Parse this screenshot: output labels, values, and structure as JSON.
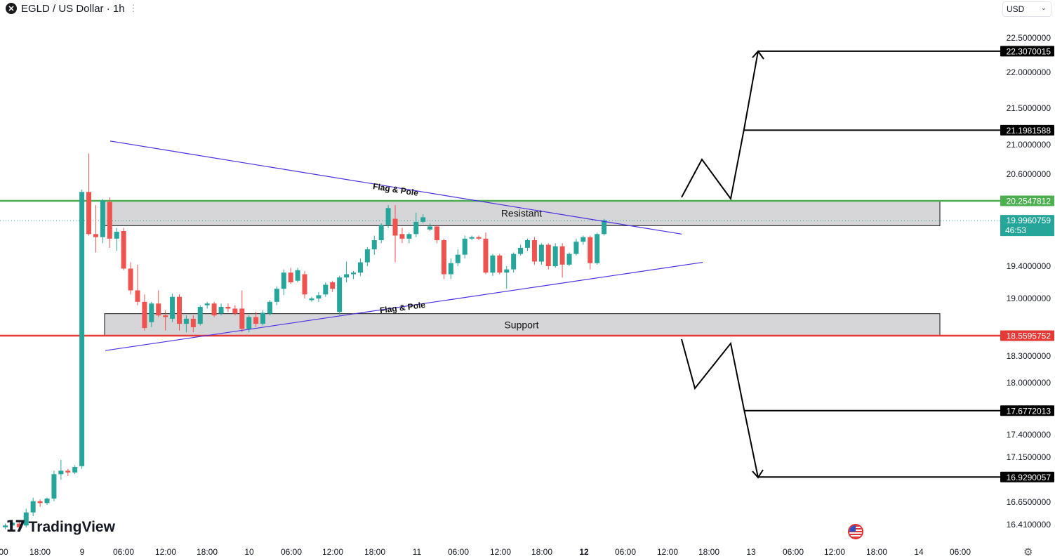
{
  "header": {
    "symbol_icon": "egld-coin-icon",
    "title": "EGLD / US Dollar · 1h"
  },
  "currency_select": {
    "value": "USD"
  },
  "brand": {
    "logo_icon": "tradingview-logo-icon",
    "name": "TradingView"
  },
  "icons": {
    "flag": "us-flag-icon",
    "settings": "gear-icon"
  },
  "colors": {
    "up": "#26a69a",
    "down": "#ef5350",
    "resistance_line": "#4caf50",
    "support_line": "#e53935",
    "flag_lines": "#4a2ee0",
    "zone_fill": "#d6d6d9"
  },
  "chart_data": {
    "type": "candlestick",
    "title": "EGLD / US Dollar · 1h",
    "price_axis_labels": [
      "22.5000000",
      "22.0000000",
      "21.5000000",
      "21.0000000",
      "20.6000000",
      "19.4000000",
      "19.0000000",
      "18.3000000",
      "18.0000000",
      "17.4000000",
      "17.1500000",
      "16.6500000",
      "16.4100000"
    ],
    "time_axis_labels": [
      "00",
      "18:00",
      "9",
      "06:00",
      "12:00",
      "18:00",
      "10",
      "06:00",
      "12:00",
      "18:00",
      "11",
      "06:00",
      "12:00",
      "18:00",
      "12",
      "06:00",
      "12:00",
      "18:00",
      "13",
      "06:00",
      "12:00",
      "18:00",
      "14",
      "06:00"
    ],
    "price_tags": [
      {
        "value": "22.3070015",
        "style": "black"
      },
      {
        "value": "21.1981588",
        "style": "black"
      },
      {
        "value": "20.2547812",
        "style": "green"
      },
      {
        "value": "19.9960759",
        "sub": "46:53",
        "style": "teal"
      },
      {
        "value": "18.5595752",
        "style": "red"
      },
      {
        "value": "17.6772013",
        "style": "black"
      },
      {
        "value": "16.9290057",
        "style": "black"
      }
    ],
    "horizontal_lines": {
      "resistance": 20.2547812,
      "support": 18.5595752,
      "last_price": 19.9960759
    },
    "zones": [
      {
        "label": "Resistant",
        "top": 20.2547812,
        "bottom": 19.93
      },
      {
        "label": "Support",
        "top": 18.82,
        "bottom": 18.56
      }
    ],
    "trendlines": [
      {
        "label": "Flag & Pole",
        "from_price": 21.05,
        "to_price": 19.82
      },
      {
        "label": "Flag & Pole",
        "from_price": 18.37,
        "to_price": 19.45
      }
    ],
    "candles": [
      [
        16.38,
        16.42,
        16.36,
        16.4
      ],
      [
        16.4,
        16.46,
        16.38,
        16.43
      ],
      [
        16.42,
        16.44,
        16.36,
        16.38
      ],
      [
        16.4,
        16.58,
        16.38,
        16.54
      ],
      [
        16.54,
        16.7,
        16.5,
        16.66
      ],
      [
        16.66,
        16.68,
        16.6,
        16.64
      ],
      [
        16.64,
        16.7,
        16.62,
        16.69
      ],
      [
        16.69,
        17.0,
        16.66,
        16.96
      ],
      [
        16.96,
        17.12,
        16.9,
        17.0
      ],
      [
        17.0,
        17.02,
        16.94,
        16.98
      ],
      [
        16.98,
        17.06,
        16.96,
        17.04
      ],
      [
        17.05,
        20.4,
        17.02,
        20.37
      ],
      [
        20.37,
        20.88,
        19.8,
        19.82
      ],
      [
        19.82,
        20.2,
        19.58,
        19.78
      ],
      [
        19.78,
        20.28,
        19.7,
        20.26
      ],
      [
        20.24,
        20.3,
        19.64,
        19.76
      ],
      [
        19.76,
        19.9,
        19.6,
        19.85
      ],
      [
        19.86,
        19.9,
        19.35,
        19.37
      ],
      [
        19.37,
        19.45,
        19.05,
        19.1
      ],
      [
        19.1,
        19.42,
        18.92,
        18.96
      ],
      [
        18.96,
        19.05,
        18.62,
        18.65
      ],
      [
        18.72,
        18.96,
        18.66,
        18.94
      ],
      [
        18.94,
        19.1,
        18.78,
        18.8
      ],
      [
        18.8,
        18.86,
        18.62,
        18.78
      ],
      [
        18.76,
        19.06,
        18.72,
        19.02
      ],
      [
        19.02,
        19.05,
        18.62,
        18.7
      ],
      [
        18.7,
        18.8,
        18.6,
        18.76
      ],
      [
        18.76,
        18.8,
        18.6,
        18.66
      ],
      [
        18.7,
        18.92,
        18.68,
        18.9
      ],
      [
        18.92,
        18.96,
        18.88,
        18.94
      ],
      [
        18.94,
        18.96,
        18.78,
        18.8
      ],
      [
        18.82,
        18.94,
        18.8,
        18.9
      ],
      [
        18.9,
        18.94,
        18.84,
        18.88
      ],
      [
        18.88,
        18.92,
        18.8,
        18.82
      ],
      [
        18.88,
        19.1,
        18.6,
        18.64
      ],
      [
        18.64,
        18.8,
        18.6,
        18.78
      ],
      [
        18.78,
        18.84,
        18.66,
        18.7
      ],
      [
        18.7,
        18.86,
        18.68,
        18.83
      ],
      [
        18.82,
        18.98,
        18.8,
        18.96
      ],
      [
        18.96,
        19.15,
        18.92,
        19.12
      ],
      [
        19.12,
        19.36,
        19.04,
        19.32
      ],
      [
        19.32,
        19.38,
        19.18,
        19.2
      ],
      [
        19.22,
        19.38,
        19.2,
        19.35
      ],
      [
        19.3,
        19.34,
        19.0,
        19.05
      ],
      [
        18.98,
        19.02,
        18.96,
        19.0
      ],
      [
        19.0,
        19.08,
        18.96,
        19.04
      ],
      [
        19.05,
        19.2,
        19.02,
        19.17
      ],
      [
        19.2,
        19.22,
        19.08,
        19.12
      ],
      [
        18.84,
        19.28,
        18.8,
        19.26
      ],
      [
        19.26,
        19.46,
        19.2,
        19.3
      ],
      [
        19.3,
        19.34,
        19.24,
        19.32
      ],
      [
        19.32,
        19.5,
        19.28,
        19.45
      ],
      [
        19.45,
        19.65,
        19.4,
        19.62
      ],
      [
        19.62,
        19.8,
        19.55,
        19.74
      ],
      [
        19.74,
        19.96,
        19.7,
        19.94
      ],
      [
        19.94,
        20.2,
        19.9,
        20.16
      ],
      [
        20.02,
        20.2,
        19.45,
        19.8
      ],
      [
        19.82,
        19.9,
        19.7,
        19.76
      ],
      [
        19.76,
        19.84,
        19.7,
        19.82
      ],
      [
        19.82,
        20.1,
        19.78,
        19.98
      ],
      [
        19.98,
        20.08,
        19.96,
        20.04
      ],
      [
        19.88,
        19.96,
        19.86,
        19.92
      ],
      [
        19.92,
        19.94,
        19.7,
        19.74
      ],
      [
        19.74,
        19.76,
        19.24,
        19.3
      ],
      [
        19.3,
        19.5,
        19.24,
        19.44
      ],
      [
        19.44,
        19.62,
        19.4,
        19.55
      ],
      [
        19.55,
        19.8,
        19.5,
        19.76
      ],
      [
        19.76,
        19.8,
        19.74,
        19.78
      ],
      [
        19.78,
        19.8,
        19.74,
        19.76
      ],
      [
        19.76,
        19.84,
        19.3,
        19.32
      ],
      [
        19.32,
        19.56,
        19.28,
        19.54
      ],
      [
        19.54,
        19.56,
        19.3,
        19.32
      ],
      [
        19.32,
        19.4,
        19.12,
        19.36
      ],
      [
        19.36,
        19.58,
        19.32,
        19.56
      ],
      [
        19.56,
        19.68,
        19.54,
        19.64
      ],
      [
        19.64,
        19.76,
        19.6,
        19.74
      ],
      [
        19.74,
        19.78,
        19.42,
        19.46
      ],
      [
        19.46,
        19.7,
        19.42,
        19.68
      ],
      [
        19.68,
        19.7,
        19.36,
        19.4
      ],
      [
        19.4,
        19.7,
        19.38,
        19.66
      ],
      [
        19.66,
        19.7,
        19.26,
        19.42
      ],
      [
        19.42,
        19.58,
        19.4,
        19.56
      ],
      [
        19.56,
        19.76,
        19.54,
        19.72
      ],
      [
        19.72,
        19.8,
        19.68,
        19.78
      ],
      [
        19.78,
        19.8,
        19.36,
        19.44
      ],
      [
        19.44,
        19.84,
        19.42,
        19.82
      ],
      [
        19.82,
        20.02,
        19.8,
        20.0
      ]
    ]
  }
}
